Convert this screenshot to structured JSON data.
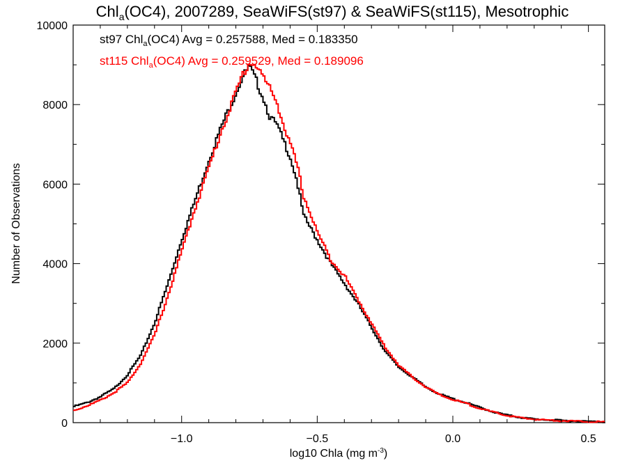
{
  "chart_data": {
    "type": "line",
    "title_main": "Chl",
    "title_sub": "a",
    "title_rest": "(OC4), 2007289, SeaWiFS(st97) & SeaWiFS(st115), Mesotrophic",
    "xlabel_main": "log10 Chla (mg m",
    "xlabel_sup": "-3",
    "xlabel_end": ")",
    "ylabel": "Number of Observations",
    "xlim": [
      -1.4,
      0.56
    ],
    "ylim": [
      0,
      10000
    ],
    "x_ticks": [
      -1.0,
      -0.5,
      0.0,
      0.5
    ],
    "x_tick_labels": [
      "−1.0",
      "−0.5",
      "0.0",
      "0.5"
    ],
    "y_ticks": [
      0,
      2000,
      4000,
      6000,
      8000,
      10000
    ],
    "y_tick_labels": [
      "0",
      "2000",
      "4000",
      "6000",
      "8000",
      "10000"
    ],
    "annotations": [
      {
        "prefix": "st97 Chl",
        "sub": "a",
        "suffix": "(OC4) Avg = 0.257588, Med = 0.183350",
        "color": "#000000"
      },
      {
        "prefix": "st115 Chl",
        "sub": "a",
        "suffix": "(OC4) Avg = 0.259529, Med = 0.189096",
        "color": "#ff0000"
      }
    ],
    "series": [
      {
        "color": "#000000",
        "x": [
          -1.4,
          -1.35,
          -1.3,
          -1.25,
          -1.2,
          -1.15,
          -1.1,
          -1.05,
          -1.0,
          -0.95,
          -0.9,
          -0.85,
          -0.8,
          -0.775,
          -0.75,
          -0.725,
          -0.7,
          -0.675,
          -0.65,
          -0.625,
          -0.6,
          -0.575,
          -0.55,
          -0.5,
          -0.45,
          -0.4,
          -0.35,
          -0.3,
          -0.25,
          -0.2,
          -0.15,
          -0.1,
          -0.05,
          0.0,
          0.05,
          0.1,
          0.15,
          0.2,
          0.25,
          0.3,
          0.35,
          0.4,
          0.45,
          0.5,
          0.56
        ],
        "y": [
          400,
          500,
          650,
          850,
          1200,
          1700,
          2500,
          3500,
          4600,
          5600,
          6600,
          7500,
          8300,
          8700,
          8950,
          8600,
          8200,
          7700,
          7500,
          7100,
          6700,
          6100,
          5200,
          4600,
          4000,
          3500,
          3000,
          2400,
          1800,
          1400,
          1150,
          900,
          720,
          600,
          500,
          380,
          270,
          190,
          130,
          90,
          70,
          55,
          40,
          30,
          20
        ]
      },
      {
        "color": "#ff0000",
        "x": [
          -1.4,
          -1.35,
          -1.3,
          -1.25,
          -1.2,
          -1.15,
          -1.1,
          -1.05,
          -1.0,
          -0.95,
          -0.9,
          -0.85,
          -0.8,
          -0.775,
          -0.75,
          -0.725,
          -0.7,
          -0.675,
          -0.65,
          -0.625,
          -0.6,
          -0.575,
          -0.55,
          -0.5,
          -0.45,
          -0.4,
          -0.35,
          -0.3,
          -0.25,
          -0.2,
          -0.15,
          -0.1,
          -0.05,
          0.0,
          0.05,
          0.1,
          0.15,
          0.2,
          0.25,
          0.3,
          0.35,
          0.4,
          0.45,
          0.5,
          0.56
        ],
        "y": [
          300,
          420,
          560,
          750,
          1000,
          1500,
          2200,
          3200,
          4300,
          5400,
          6400,
          7400,
          8300,
          8750,
          9050,
          9000,
          8700,
          8400,
          8100,
          7500,
          7000,
          6500,
          5700,
          4800,
          4100,
          3700,
          3100,
          2500,
          1900,
          1450,
          1150,
          900,
          700,
          580,
          480,
          360,
          260,
          180,
          120,
          85,
          65,
          50,
          38,
          28,
          18
        ]
      }
    ]
  }
}
